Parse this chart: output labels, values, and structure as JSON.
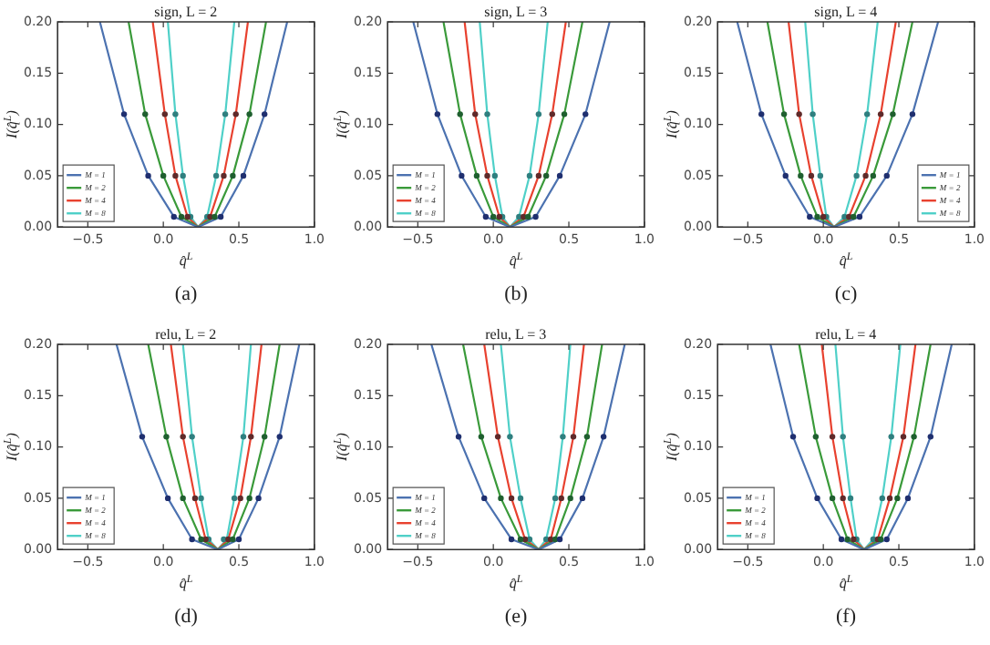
{
  "chart_data": [
    {
      "type": "line",
      "title": "sign, L = 2",
      "xlabel": "q̂$^{L}$",
      "ylabel": "I(q̂$^{L}$)",
      "annotations": [
        "(a)"
      ],
      "xlim": [
        -0.7,
        1.0
      ],
      "xticks": [
        {
          "value": -0.5,
          "label": "−0.5"
        },
        {
          "value": 0,
          "label": "0.0"
        },
        {
          "value": 0.5,
          "label": "0.5"
        },
        {
          "value": 1,
          "label": "1.0"
        }
      ],
      "ylim": [
        0,
        0.2
      ],
      "yticks": [
        {
          "value": 0,
          "label": "0.00"
        },
        {
          "value": 0.05,
          "label": "0.05"
        },
        {
          "value": 0.1,
          "label": "0.10"
        },
        {
          "value": 0.15,
          "label": "0.15"
        },
        {
          "value": 0.2,
          "label": "0.20"
        }
      ],
      "legend": "bottom left",
      "series": [
        {
          "name": "M = 1",
          "color": "#4c72b0",
          "marker": "none",
          "x": [
            -0.42,
            -0.26,
            -0.1,
            0.07,
            0.23,
            0.38,
            0.53,
            0.67,
            0.82
          ],
          "values": [
            0.2,
            0.11,
            0.05,
            0.01,
            0,
            0.01,
            0.05,
            0.11,
            0.2
          ]
        },
        {
          "name": "M = 2",
          "color": "#3a9a3a",
          "marker": "none",
          "x": [
            -0.23,
            -0.12,
            0,
            0.12,
            0.23,
            0.34,
            0.46,
            0.57,
            0.68
          ],
          "values": [
            0.2,
            0.11,
            0.05,
            0.01,
            0,
            0.01,
            0.05,
            0.11,
            0.2
          ]
        },
        {
          "name": "M = 4",
          "color": "#e8412f",
          "marker": "none",
          "x": [
            -0.07,
            0.01,
            0.08,
            0.16,
            0.23,
            0.31,
            0.4,
            0.48,
            0.56
          ],
          "values": [
            0.2,
            0.11,
            0.05,
            0.01,
            0,
            0.01,
            0.05,
            0.11,
            0.2
          ]
        },
        {
          "name": "M = 8",
          "color": "#4fd0c8",
          "marker": "none",
          "x": [
            0.03,
            0.08,
            0.13,
            0.18,
            0.23,
            0.29,
            0.35,
            0.41,
            0.47
          ],
          "values": [
            0.2,
            0.11,
            0.05,
            0.01,
            0,
            0.01,
            0.05,
            0.11,
            0.2
          ]
        },
        {
          "type": "scatter",
          "color": "#1f2f6f",
          "marker": "circle",
          "x": [
            -0.26,
            -0.1,
            0.07,
            0.38,
            0.53,
            0.67
          ],
          "values": [
            0.11,
            0.05,
            0.01,
            0.01,
            0.05,
            0.11
          ]
        },
        {
          "type": "scatter",
          "color": "#1f5f2f",
          "marker": "circle",
          "x": [
            -0.12,
            0,
            0.12,
            0.34,
            0.46,
            0.57
          ],
          "values": [
            0.11,
            0.05,
            0.01,
            0.01,
            0.05,
            0.11
          ]
        },
        {
          "type": "scatter",
          "color": "#5f2a2a",
          "marker": "circle",
          "x": [
            0.01,
            0.08,
            0.16,
            0.31,
            0.4,
            0.48
          ],
          "values": [
            0.11,
            0.05,
            0.01,
            0.01,
            0.05,
            0.11
          ]
        },
        {
          "type": "scatter",
          "color": "#2f7f7f",
          "marker": "circle",
          "x": [
            0.08,
            0.13,
            0.18,
            0.29,
            0.35,
            0.41
          ],
          "values": [
            0.11,
            0.05,
            0.01,
            0.01,
            0.05,
            0.11
          ]
        }
      ]
    },
    {
      "type": "line",
      "title": "sign, L = 3",
      "xlabel": "q̂$^{L}$",
      "ylabel": "I(q̂$^{L}$)",
      "annotations": [
        "(b)"
      ],
      "xlim": [
        -0.7,
        1.0
      ],
      "xticks": [
        {
          "value": -0.5,
          "label": "−0.5"
        },
        {
          "value": 0,
          "label": "0.0"
        },
        {
          "value": 0.5,
          "label": "0.5"
        },
        {
          "value": 1,
          "label": "1.0"
        }
      ],
      "ylim": [
        0,
        0.2
      ],
      "yticks": [
        {
          "value": 0,
          "label": "0.00"
        },
        {
          "value": 0.05,
          "label": "0.05"
        },
        {
          "value": 0.1,
          "label": "0.10"
        },
        {
          "value": 0.15,
          "label": "0.15"
        },
        {
          "value": 0.2,
          "label": "0.20"
        }
      ],
      "legend": "bottom left",
      "series": [
        {
          "name": "M = 1",
          "color": "#4c72b0",
          "marker": "none",
          "x": [
            -0.53,
            -0.37,
            -0.21,
            -0.05,
            0.11,
            0.28,
            0.44,
            0.61,
            0.77
          ],
          "values": [
            0.2,
            0.11,
            0.05,
            0.01,
            0,
            0.01,
            0.05,
            0.11,
            0.2
          ]
        },
        {
          "name": "M = 2",
          "color": "#3a9a3a",
          "marker": "none",
          "x": [
            -0.33,
            -0.22,
            -0.11,
            0,
            0.11,
            0.23,
            0.35,
            0.47,
            0.59
          ],
          "values": [
            0.2,
            0.11,
            0.05,
            0.01,
            0,
            0.01,
            0.05,
            0.11,
            0.2
          ]
        },
        {
          "name": "M = 4",
          "color": "#e8412f",
          "marker": "none",
          "x": [
            -0.19,
            -0.12,
            -0.04,
            0.04,
            0.11,
            0.2,
            0.3,
            0.39,
            0.48
          ],
          "values": [
            0.2,
            0.11,
            0.05,
            0.01,
            0,
            0.01,
            0.05,
            0.11,
            0.2
          ]
        },
        {
          "name": "M = 8",
          "color": "#4fd0c8",
          "marker": "none",
          "x": [
            -0.09,
            -0.04,
            0.01,
            0.06,
            0.11,
            0.17,
            0.24,
            0.3,
            0.36
          ],
          "values": [
            0.2,
            0.11,
            0.05,
            0.01,
            0,
            0.01,
            0.05,
            0.11,
            0.2
          ]
        },
        {
          "type": "scatter",
          "color": "#1f2f6f",
          "marker": "circle",
          "x": [
            -0.37,
            -0.21,
            -0.05,
            0.28,
            0.44,
            0.61
          ],
          "values": [
            0.11,
            0.05,
            0.01,
            0.01,
            0.05,
            0.11
          ]
        },
        {
          "type": "scatter",
          "color": "#1f5f2f",
          "marker": "circle",
          "x": [
            -0.22,
            -0.11,
            0,
            0.23,
            0.35,
            0.47
          ],
          "values": [
            0.11,
            0.05,
            0.01,
            0.01,
            0.05,
            0.11
          ]
        },
        {
          "type": "scatter",
          "color": "#5f2a2a",
          "marker": "circle",
          "x": [
            -0.12,
            -0.04,
            0.04,
            0.2,
            0.3,
            0.39
          ],
          "values": [
            0.11,
            0.05,
            0.01,
            0.01,
            0.05,
            0.11
          ]
        },
        {
          "type": "scatter",
          "color": "#2f7f7f",
          "marker": "circle",
          "x": [
            -0.04,
            0.01,
            0.06,
            0.17,
            0.24,
            0.3
          ],
          "values": [
            0.11,
            0.05,
            0.01,
            0.01,
            0.05,
            0.11
          ]
        }
      ]
    },
    {
      "type": "line",
      "title": "sign, L = 4",
      "xlabel": "q̂$^{L}$",
      "ylabel": "I(q̂$^{L}$)",
      "annotations": [
        "(c)"
      ],
      "xlim": [
        -0.7,
        1.0
      ],
      "xticks": [
        {
          "value": -0.5,
          "label": "−0.5"
        },
        {
          "value": 0,
          "label": "0.0"
        },
        {
          "value": 0.5,
          "label": "0.5"
        },
        {
          "value": 1,
          "label": "1.0"
        }
      ],
      "ylim": [
        0,
        0.2
      ],
      "yticks": [
        {
          "value": 0,
          "label": "0.00"
        },
        {
          "value": 0.05,
          "label": "0.05"
        },
        {
          "value": 0.1,
          "label": "0.10"
        },
        {
          "value": 0.15,
          "label": "0.15"
        },
        {
          "value": 0.2,
          "label": "0.20"
        }
      ],
      "legend": "bottom right",
      "series": [
        {
          "name": "M = 1",
          "color": "#4c72b0",
          "marker": "none",
          "x": [
            -0.57,
            -0.41,
            -0.25,
            -0.09,
            0.07,
            0.24,
            0.42,
            0.59,
            0.76
          ],
          "values": [
            0.2,
            0.11,
            0.05,
            0.01,
            0,
            0.01,
            0.05,
            0.11,
            0.2
          ]
        },
        {
          "name": "M = 2",
          "color": "#3a9a3a",
          "marker": "none",
          "x": [
            -0.37,
            -0.26,
            -0.15,
            -0.04,
            0.07,
            0.2,
            0.33,
            0.46,
            0.59
          ],
          "values": [
            0.2,
            0.11,
            0.05,
            0.01,
            0,
            0.01,
            0.05,
            0.11,
            0.2
          ]
        },
        {
          "name": "M = 4",
          "color": "#e8412f",
          "marker": "none",
          "x": [
            -0.23,
            -0.16,
            -0.08,
            0,
            0.07,
            0.17,
            0.28,
            0.38,
            0.48
          ],
          "values": [
            0.2,
            0.11,
            0.05,
            0.01,
            0,
            0.01,
            0.05,
            0.11,
            0.2
          ]
        },
        {
          "name": "M = 8",
          "color": "#4fd0c8",
          "marker": "none",
          "x": [
            -0.12,
            -0.07,
            -0.02,
            0.02,
            0.07,
            0.14,
            0.22,
            0.29,
            0.36
          ],
          "values": [
            0.2,
            0.11,
            0.05,
            0.01,
            0,
            0.01,
            0.05,
            0.11,
            0.2
          ]
        },
        {
          "type": "scatter",
          "color": "#1f2f6f",
          "marker": "circle",
          "x": [
            -0.41,
            -0.25,
            -0.09,
            0.24,
            0.42,
            0.59
          ],
          "values": [
            0.11,
            0.05,
            0.01,
            0.01,
            0.05,
            0.11
          ]
        },
        {
          "type": "scatter",
          "color": "#1f5f2f",
          "marker": "circle",
          "x": [
            -0.26,
            -0.15,
            -0.04,
            0.2,
            0.33,
            0.46
          ],
          "values": [
            0.11,
            0.05,
            0.01,
            0.01,
            0.05,
            0.11
          ]
        },
        {
          "type": "scatter",
          "color": "#5f2a2a",
          "marker": "circle",
          "x": [
            -0.16,
            -0.08,
            0,
            0.17,
            0.28,
            0.38
          ],
          "values": [
            0.11,
            0.05,
            0.01,
            0.01,
            0.05,
            0.11
          ]
        },
        {
          "type": "scatter",
          "color": "#2f7f7f",
          "marker": "circle",
          "x": [
            -0.07,
            -0.02,
            0.02,
            0.14,
            0.22,
            0.29
          ],
          "values": [
            0.11,
            0.05,
            0.01,
            0.01,
            0.05,
            0.11
          ]
        }
      ]
    },
    {
      "type": "line",
      "title": "relu, L = 2",
      "xlabel": "q̂$^{L}$",
      "ylabel": "I(q̂$^{L}$)",
      "annotations": [
        "(d)"
      ],
      "xlim": [
        -0.7,
        1.0
      ],
      "xticks": [
        {
          "value": -0.5,
          "label": "−0.5"
        },
        {
          "value": 0,
          "label": "0.0"
        },
        {
          "value": 0.5,
          "label": "0.5"
        },
        {
          "value": 1,
          "label": "1.0"
        }
      ],
      "ylim": [
        0,
        0.2
      ],
      "yticks": [
        {
          "value": 0,
          "label": "0.00"
        },
        {
          "value": 0.05,
          "label": "0.05"
        },
        {
          "value": 0.1,
          "label": "0.10"
        },
        {
          "value": 0.15,
          "label": "0.15"
        },
        {
          "value": 0.2,
          "label": "0.20"
        }
      ],
      "legend": "bottom left",
      "series": [
        {
          "name": "M = 1",
          "color": "#4c72b0",
          "marker": "none",
          "x": [
            -0.31,
            -0.14,
            0.03,
            0.19,
            0.36,
            0.5,
            0.63,
            0.77,
            0.9
          ],
          "values": [
            0.2,
            0.11,
            0.05,
            0.01,
            0,
            0.01,
            0.05,
            0.11,
            0.2
          ]
        },
        {
          "name": "M = 2",
          "color": "#3a9a3a",
          "marker": "none",
          "x": [
            -0.1,
            0.02,
            0.13,
            0.25,
            0.36,
            0.46,
            0.57,
            0.67,
            0.77
          ],
          "values": [
            0.2,
            0.11,
            0.05,
            0.01,
            0,
            0.01,
            0.05,
            0.11,
            0.2
          ]
        },
        {
          "name": "M = 4",
          "color": "#e8412f",
          "marker": "none",
          "x": [
            0.05,
            0.13,
            0.21,
            0.28,
            0.36,
            0.43,
            0.51,
            0.58,
            0.65
          ],
          "values": [
            0.2,
            0.11,
            0.05,
            0.01,
            0,
            0.01,
            0.05,
            0.11,
            0.2
          ]
        },
        {
          "name": "M = 8",
          "color": "#4fd0c8",
          "marker": "none",
          "x": [
            0.13,
            0.19,
            0.25,
            0.3,
            0.36,
            0.42,
            0.47,
            0.53,
            0.58
          ],
          "values": [
            0.2,
            0.11,
            0.05,
            0.01,
            0,
            0.01,
            0.05,
            0.11,
            0.2
          ]
        },
        {
          "type": "scatter",
          "color": "#1f2f6f",
          "marker": "circle",
          "x": [
            -0.14,
            0.03,
            0.19,
            0.5,
            0.63,
            0.77
          ],
          "values": [
            0.11,
            0.05,
            0.01,
            0.01,
            0.05,
            0.11
          ]
        },
        {
          "type": "scatter",
          "color": "#1f5f2f",
          "marker": "circle",
          "x": [
            0.02,
            0.13,
            0.25,
            0.46,
            0.57,
            0.67
          ],
          "values": [
            0.11,
            0.05,
            0.01,
            0.01,
            0.05,
            0.11
          ]
        },
        {
          "type": "scatter",
          "color": "#5f2a2a",
          "marker": "circle",
          "x": [
            0.13,
            0.21,
            0.28,
            0.43,
            0.51,
            0.58
          ],
          "values": [
            0.11,
            0.05,
            0.01,
            0.01,
            0.05,
            0.11
          ]
        },
        {
          "type": "scatter",
          "color": "#2f7f7f",
          "marker": "circle",
          "x": [
            0.19,
            0.25,
            0.3,
            0.4,
            0.47,
            0.53
          ],
          "values": [
            0.11,
            0.05,
            0.01,
            0.01,
            0.05,
            0.11
          ]
        }
      ]
    },
    {
      "type": "line",
      "title": "relu, L = 3",
      "xlabel": "q̂$^{L}$",
      "ylabel": "I(q̂$^{L}$)",
      "annotations": [
        "(e)"
      ],
      "xlim": [
        -0.7,
        1.0
      ],
      "xticks": [
        {
          "value": -0.5,
          "label": "−0.5"
        },
        {
          "value": 0,
          "label": "0.0"
        },
        {
          "value": 0.5,
          "label": "0.5"
        },
        {
          "value": 1,
          "label": "1.0"
        }
      ],
      "ylim": [
        0,
        0.2
      ],
      "yticks": [
        {
          "value": 0,
          "label": "0.00"
        },
        {
          "value": 0.05,
          "label": "0.05"
        },
        {
          "value": 0.1,
          "label": "0.10"
        },
        {
          "value": 0.15,
          "label": "0.15"
        },
        {
          "value": 0.2,
          "label": "0.20"
        }
      ],
      "legend": "bottom left",
      "series": [
        {
          "name": "M = 1",
          "color": "#4c72b0",
          "marker": "none",
          "x": [
            -0.41,
            -0.23,
            -0.06,
            0.12,
            0.3,
            0.44,
            0.59,
            0.73,
            0.87
          ],
          "values": [
            0.2,
            0.11,
            0.05,
            0.01,
            0,
            0.01,
            0.05,
            0.11,
            0.2
          ]
        },
        {
          "name": "M = 2",
          "color": "#3a9a3a",
          "marker": "none",
          "x": [
            -0.2,
            -0.08,
            0.05,
            0.18,
            0.3,
            0.41,
            0.51,
            0.62,
            0.72
          ],
          "values": [
            0.2,
            0.11,
            0.05,
            0.01,
            0,
            0.01,
            0.05,
            0.11,
            0.2
          ]
        },
        {
          "name": "M = 4",
          "color": "#e8412f",
          "marker": "none",
          "x": [
            -0.06,
            0.03,
            0.12,
            0.21,
            0.3,
            0.38,
            0.45,
            0.53,
            0.6
          ],
          "values": [
            0.2,
            0.11,
            0.05,
            0.01,
            0,
            0.01,
            0.05,
            0.11,
            0.2
          ]
        },
        {
          "name": "M = 8",
          "color": "#4fd0c8",
          "marker": "none",
          "x": [
            0.05,
            0.11,
            0.18,
            0.24,
            0.3,
            0.35,
            0.41,
            0.46,
            0.51
          ],
          "values": [
            0.2,
            0.11,
            0.05,
            0.01,
            0,
            0.01,
            0.05,
            0.11,
            0.2
          ]
        },
        {
          "type": "scatter",
          "color": "#1f2f6f",
          "marker": "circle",
          "x": [
            -0.23,
            -0.06,
            0.12,
            0.44,
            0.59,
            0.73
          ],
          "values": [
            0.11,
            0.05,
            0.01,
            0.01,
            0.05,
            0.11
          ]
        },
        {
          "type": "scatter",
          "color": "#1f5f2f",
          "marker": "circle",
          "x": [
            -0.08,
            0.05,
            0.18,
            0.41,
            0.51,
            0.62
          ],
          "values": [
            0.11,
            0.05,
            0.01,
            0.01,
            0.05,
            0.11
          ]
        },
        {
          "type": "scatter",
          "color": "#5f2a2a",
          "marker": "circle",
          "x": [
            0.03,
            0.12,
            0.21,
            0.38,
            0.45,
            0.53
          ],
          "values": [
            0.11,
            0.05,
            0.01,
            0.01,
            0.05,
            0.11
          ]
        },
        {
          "type": "scatter",
          "color": "#2f7f7f",
          "marker": "circle",
          "x": [
            0.11,
            0.18,
            0.24,
            0.35,
            0.41,
            0.46
          ],
          "values": [
            0.11,
            0.05,
            0.01,
            0.01,
            0.05,
            0.11
          ]
        }
      ]
    },
    {
      "type": "line",
      "title": "relu, L = 4",
      "xlabel": "q̂$^{L}$",
      "ylabel": "I(q̂$^{L}$)",
      "annotations": [
        "(f)"
      ],
      "xlim": [
        -0.7,
        1.0
      ],
      "xticks": [
        {
          "value": -0.5,
          "label": "−0.5"
        },
        {
          "value": 0,
          "label": "0.0"
        },
        {
          "value": 0.5,
          "label": "0.5"
        },
        {
          "value": 1,
          "label": "1.0"
        }
      ],
      "ylim": [
        0,
        0.2
      ],
      "yticks": [
        {
          "value": 0,
          "label": "0.00"
        },
        {
          "value": 0.05,
          "label": "0.05"
        },
        {
          "value": 0.1,
          "label": "0.10"
        },
        {
          "value": 0.15,
          "label": "0.15"
        },
        {
          "value": 0.2,
          "label": "0.20"
        }
      ],
      "legend": "bottom left",
      "series": [
        {
          "name": "M = 1",
          "color": "#4c72b0",
          "marker": "none",
          "x": [
            -0.35,
            -0.2,
            -0.04,
            0.12,
            0.27,
            0.42,
            0.56,
            0.71,
            0.85
          ],
          "values": [
            0.2,
            0.11,
            0.05,
            0.01,
            0,
            0.01,
            0.05,
            0.11,
            0.2
          ]
        },
        {
          "name": "M = 2",
          "color": "#3a9a3a",
          "marker": "none",
          "x": [
            -0.16,
            -0.05,
            0.06,
            0.16,
            0.27,
            0.38,
            0.49,
            0.6,
            0.71
          ],
          "values": [
            0.2,
            0.11,
            0.05,
            0.01,
            0,
            0.01,
            0.05,
            0.11,
            0.2
          ]
        },
        {
          "name": "M = 4",
          "color": "#e8412f",
          "marker": "none",
          "x": [
            -0.01,
            0.06,
            0.13,
            0.2,
            0.27,
            0.36,
            0.44,
            0.53,
            0.61
          ],
          "values": [
            0.2,
            0.11,
            0.05,
            0.01,
            0,
            0.01,
            0.05,
            0.11,
            0.2
          ]
        },
        {
          "name": "M = 8",
          "color": "#4fd0c8",
          "marker": "none",
          "x": [
            0.08,
            0.13,
            0.18,
            0.22,
            0.27,
            0.33,
            0.39,
            0.45,
            0.51
          ],
          "values": [
            0.2,
            0.11,
            0.05,
            0.01,
            0,
            0.01,
            0.05,
            0.11,
            0.2
          ]
        },
        {
          "type": "scatter",
          "color": "#1f2f6f",
          "marker": "circle",
          "x": [
            -0.2,
            -0.04,
            0.12,
            0.42,
            0.56,
            0.71
          ],
          "values": [
            0.11,
            0.05,
            0.01,
            0.01,
            0.05,
            0.11
          ]
        },
        {
          "type": "scatter",
          "color": "#1f5f2f",
          "marker": "circle",
          "x": [
            -0.05,
            0.06,
            0.16,
            0.38,
            0.49,
            0.6
          ],
          "values": [
            0.11,
            0.05,
            0.01,
            0.01,
            0.05,
            0.11
          ]
        },
        {
          "type": "scatter",
          "color": "#5f2a2a",
          "marker": "circle",
          "x": [
            0.06,
            0.13,
            0.2,
            0.36,
            0.44,
            0.53
          ],
          "values": [
            0.11,
            0.05,
            0.01,
            0.01,
            0.05,
            0.11
          ]
        },
        {
          "type": "scatter",
          "color": "#2f7f7f",
          "marker": "circle",
          "x": [
            0.13,
            0.18,
            0.22,
            0.33,
            0.39,
            0.45
          ],
          "values": [
            0.11,
            0.05,
            0.01,
            0.01,
            0.05,
            0.11
          ]
        }
      ]
    }
  ]
}
